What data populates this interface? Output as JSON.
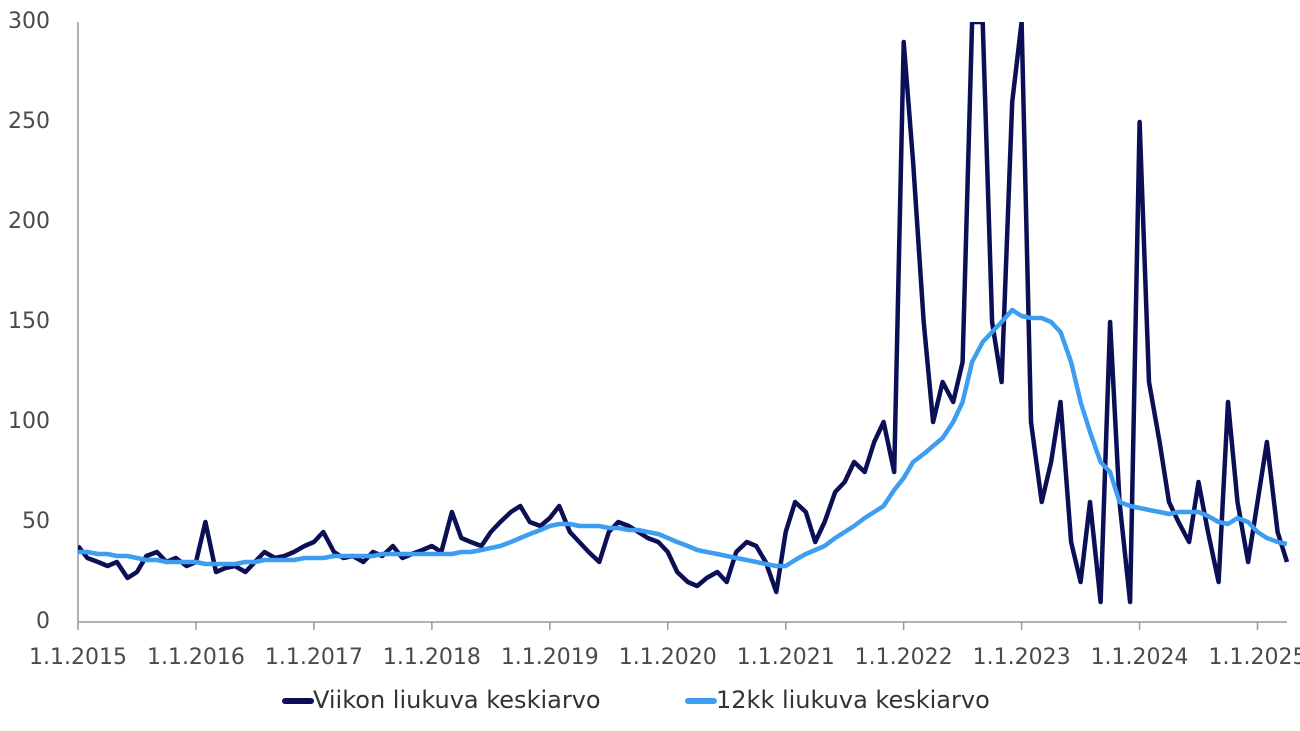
{
  "chart_data": {
    "type": "line",
    "x": [
      2015,
      2015.08,
      2015.17,
      2015.25,
      2015.33,
      2015.42,
      2015.5,
      2015.58,
      2015.67,
      2015.75,
      2015.83,
      2015.92,
      2016,
      2016.08,
      2016.17,
      2016.25,
      2016.33,
      2016.42,
      2016.5,
      2016.58,
      2016.67,
      2016.75,
      2016.83,
      2016.92,
      2017,
      2017.08,
      2017.17,
      2017.25,
      2017.33,
      2017.42,
      2017.5,
      2017.58,
      2017.67,
      2017.75,
      2017.83,
      2017.92,
      2018,
      2018.08,
      2018.17,
      2018.25,
      2018.33,
      2018.42,
      2018.5,
      2018.58,
      2018.67,
      2018.75,
      2018.83,
      2018.92,
      2019,
      2019.08,
      2019.17,
      2019.25,
      2019.33,
      2019.42,
      2019.5,
      2019.58,
      2019.67,
      2019.75,
      2019.83,
      2019.92,
      2020,
      2020.08,
      2020.17,
      2020.25,
      2020.33,
      2020.42,
      2020.5,
      2020.58,
      2020.67,
      2020.75,
      2020.83,
      2020.92,
      2021,
      2021.08,
      2021.17,
      2021.25,
      2021.33,
      2021.42,
      2021.5,
      2021.58,
      2021.67,
      2021.75,
      2021.83,
      2021.92,
      2022,
      2022.08,
      2022.17,
      2022.25,
      2022.33,
      2022.42,
      2022.5,
      2022.58,
      2022.67,
      2022.75,
      2022.83,
      2022.92,
      2023,
      2023.08,
      2023.17,
      2023.25,
      2023.33,
      2023.42,
      2023.5,
      2023.58,
      2023.67,
      2023.75,
      2023.83,
      2023.92,
      2024,
      2024.08,
      2024.17,
      2024.25,
      2024.33,
      2024.42,
      2024.5,
      2024.58,
      2024.67,
      2024.75,
      2024.83,
      2024.92,
      2025,
      2025.08,
      2025.17,
      2025.25
    ],
    "series": [
      {
        "name": "Viikon liukuva keskiarvo",
        "color": "#0b0f55",
        "values": [
          38,
          32,
          30,
          28,
          30,
          22,
          25,
          33,
          35,
          30,
          32,
          28,
          30,
          50,
          25,
          27,
          28,
          25,
          30,
          35,
          32,
          33,
          35,
          38,
          40,
          45,
          35,
          32,
          33,
          30,
          35,
          33,
          38,
          32,
          34,
          36,
          38,
          35,
          55,
          42,
          40,
          38,
          45,
          50,
          55,
          58,
          50,
          48,
          52,
          58,
          45,
          40,
          35,
          30,
          45,
          50,
          48,
          45,
          42,
          40,
          35,
          25,
          20,
          18,
          22,
          25,
          20,
          35,
          40,
          38,
          30,
          15,
          45,
          60,
          55,
          40,
          50,
          65,
          70,
          80,
          75,
          90,
          100,
          75,
          290,
          230,
          150,
          100,
          120,
          110,
          130,
          300,
          300,
          150,
          120,
          260,
          300,
          100,
          60,
          80,
          110,
          40,
          20,
          60,
          10,
          150,
          60,
          10,
          250,
          120,
          90,
          60,
          50,
          40,
          70,
          45,
          20,
          110,
          60,
          30,
          60,
          90,
          45,
          30
        ]
      },
      {
        "name": "12kk liukuva keskiarvo",
        "color": "#3d9df0",
        "values": [
          35,
          35,
          34,
          34,
          33,
          33,
          32,
          31,
          31,
          30,
          30,
          30,
          30,
          29,
          29,
          29,
          29,
          30,
          30,
          31,
          31,
          31,
          31,
          32,
          32,
          32,
          33,
          33,
          33,
          33,
          33,
          34,
          34,
          34,
          34,
          34,
          34,
          34,
          34,
          35,
          35,
          36,
          37,
          38,
          40,
          42,
          44,
          46,
          48,
          49,
          49,
          48,
          48,
          48,
          47,
          47,
          46,
          46,
          45,
          44,
          42,
          40,
          38,
          36,
          35,
          34,
          33,
          32,
          31,
          30,
          29,
          28,
          28,
          31,
          34,
          36,
          38,
          42,
          45,
          48,
          52,
          55,
          58,
          66,
          72,
          80,
          84,
          88,
          92,
          100,
          110,
          130,
          140,
          145,
          150,
          156,
          153,
          152,
          152,
          150,
          145,
          130,
          110,
          95,
          80,
          75,
          60,
          58,
          57,
          56,
          55,
          54,
          55,
          55,
          55,
          53,
          50,
          49,
          52,
          50,
          45,
          42,
          40,
          39
        ]
      }
    ],
    "xlim": [
      2015,
      2025.25
    ],
    "xticks": [
      {
        "value": 2015,
        "label": "1.1.2015"
      },
      {
        "value": 2016,
        "label": "1.1.2016"
      },
      {
        "value": 2017,
        "label": "1.1.2017"
      },
      {
        "value": 2018,
        "label": "1.1.2018"
      },
      {
        "value": 2019,
        "label": "1.1.2019"
      },
      {
        "value": 2020,
        "label": "1.1.2020"
      },
      {
        "value": 2021,
        "label": "1.1.2021"
      },
      {
        "value": 2022,
        "label": "1.1.2022"
      },
      {
        "value": 2023,
        "label": "1.1.2023"
      },
      {
        "value": 2024,
        "label": "1.1.2024"
      },
      {
        "value": 2025,
        "label": "1.1.2025"
      }
    ],
    "ylim": [
      0,
      300
    ],
    "yticks": [
      0,
      50,
      100,
      150,
      200,
      250,
      300
    ],
    "legend": "bottom"
  }
}
